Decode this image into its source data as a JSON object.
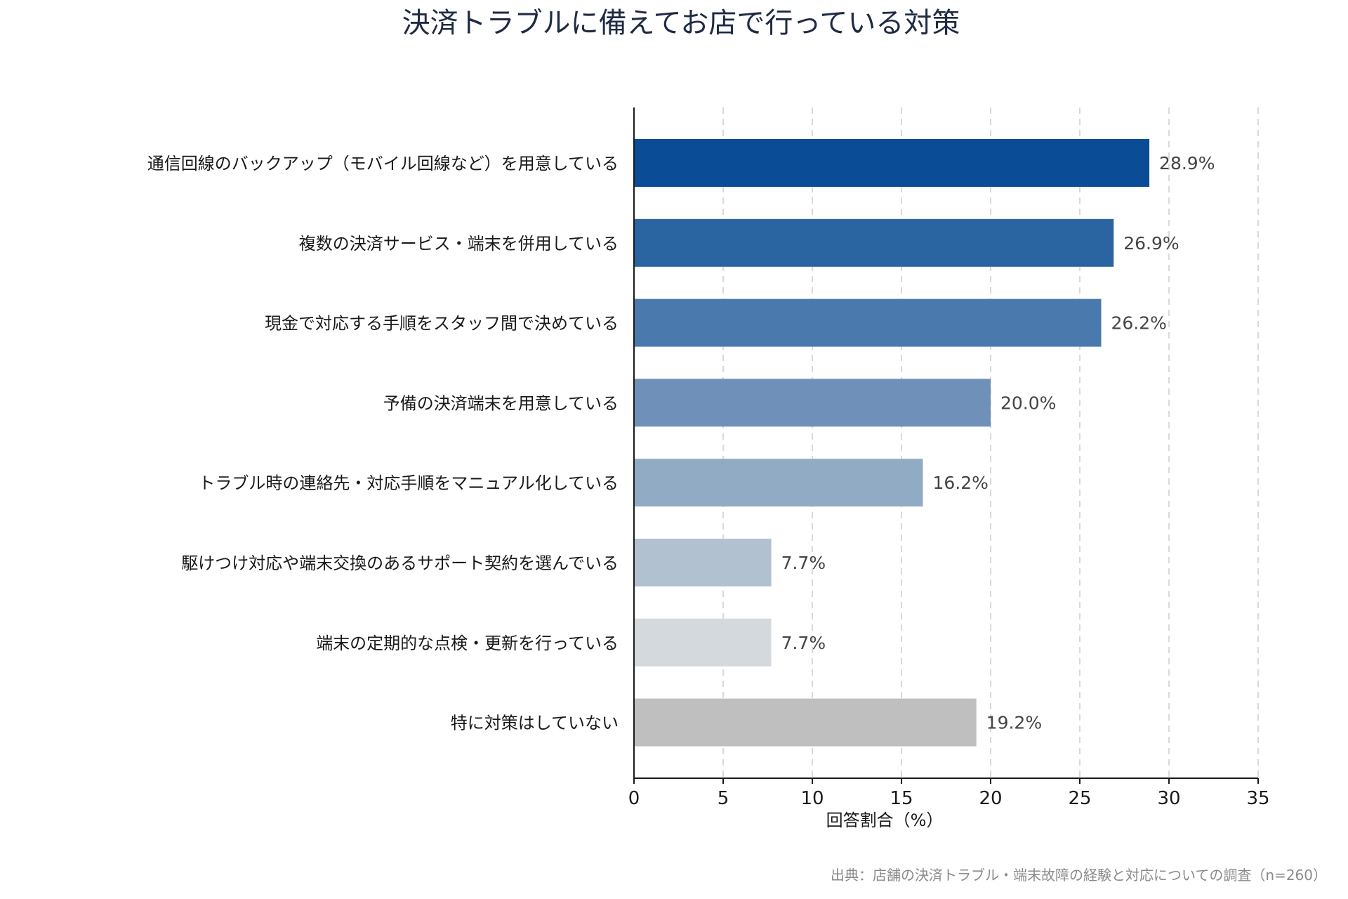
{
  "chart_data": {
    "type": "bar",
    "orientation": "horizontal",
    "title": "決済トラブルに備えてお店で行っている対策",
    "xlabel": "回答割合（%）",
    "ylabel": "",
    "xlim": [
      0,
      35
    ],
    "xticks": [
      0,
      5,
      10,
      15,
      20,
      25,
      30,
      35
    ],
    "grid": "vertical dashed",
    "categories": [
      "通信回線のバックアップ（モバイル回線など）を用意している",
      "複数の決済サービス・端末を併用している",
      "現金で対応する手順をスタッフ間で決めている",
      "予備の決済端末を用意している",
      "トラブル時の連絡先・対応手順をマニュアル化している",
      "駆けつけ対応や端末交換のあるサポート契約を選んでいる",
      "端末の定期的な点検・更新を行っている",
      "特に対策はしていない"
    ],
    "values": [
      28.9,
      26.9,
      26.2,
      20.0,
      16.2,
      7.7,
      7.7,
      19.2
    ],
    "value_labels": [
      "28.9%",
      "26.9%",
      "26.2%",
      "20.0%",
      "16.2%",
      "7.7%",
      "7.7%",
      "19.2%"
    ],
    "colors": [
      "#0b4c96",
      "#2a64a1",
      "#4a79ad",
      "#6f90b9",
      "#92abc5",
      "#b1c1d0",
      "#d4d9dd",
      "#bfbfbf"
    ],
    "source": "出典：店舗の決済トラブル・端末故障の経験と対応についての調査（n=260）"
  }
}
